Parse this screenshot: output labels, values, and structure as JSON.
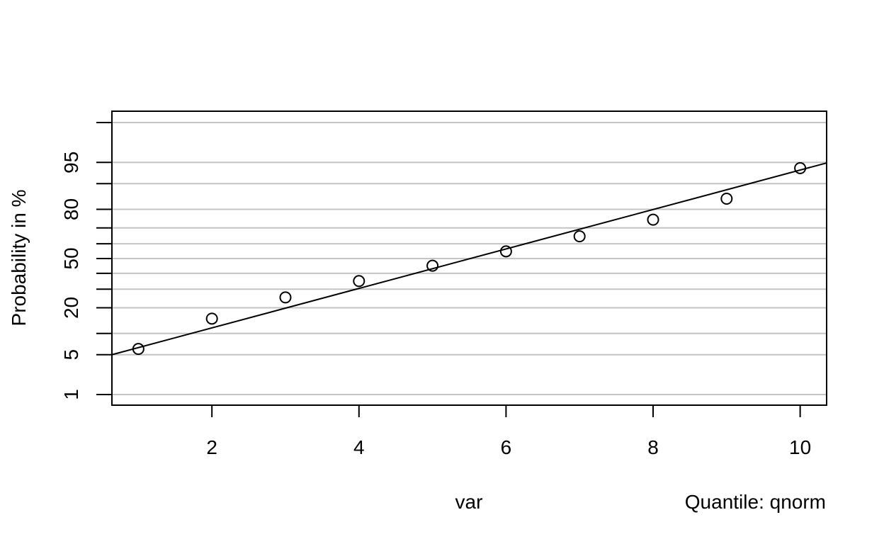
{
  "chart_data": {
    "type": "scatter",
    "title": "",
    "xlabel": "var",
    "ylabel": "Probability in %",
    "note": "Quantile: qnorm",
    "xlim": [
      0.64,
      10.36
    ],
    "x_ticks": [
      2,
      4,
      6,
      8,
      10
    ],
    "y_scale": "normal-probability",
    "ylim_percent": [
      0.73,
      95.6
    ],
    "y_ticks_labeled": [
      1,
      5,
      20,
      50,
      80,
      95
    ],
    "y_ticks_minor": [
      10,
      30,
      40,
      60,
      70,
      90,
      99
    ],
    "y_gridlines_percent": [
      1,
      5,
      10,
      20,
      30,
      40,
      50,
      60,
      70,
      80,
      90,
      95,
      99
    ],
    "grid": true,
    "series": [
      {
        "marker": "open-circle",
        "x": [
          1,
          2,
          3,
          4,
          5,
          6,
          7,
          8,
          9,
          10
        ],
        "y_percent": [
          6.1,
          15.2,
          25.3,
          35.0,
          45.1,
          54.9,
          64.8,
          74.7,
          84.7,
          93.9
        ]
      }
    ],
    "reference_line": {
      "style": "solid",
      "from": {
        "x": 0.64,
        "y_percent": 5.0
      },
      "to": {
        "x": 10.36,
        "y_percent": 94.9
      }
    }
  }
}
